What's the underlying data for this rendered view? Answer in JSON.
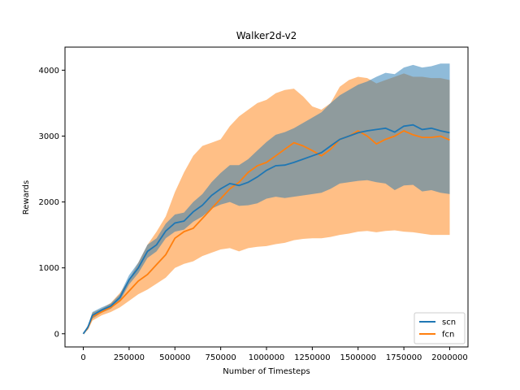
{
  "chart_data": {
    "type": "line",
    "title": "Walker2d-v2",
    "xlabel": "Number of Timesteps",
    "ylabel": "Rewards",
    "xlim": [
      -100000,
      2100000
    ],
    "ylim": [
      -200,
      4350
    ],
    "xticks": [
      0,
      250000,
      500000,
      750000,
      1000000,
      1250000,
      1500000,
      1750000,
      2000000
    ],
    "xtick_labels": [
      "0",
      "250000",
      "500000",
      "750000",
      "1000000",
      "1250000",
      "1500000",
      "1750000",
      "2000000"
    ],
    "yticks": [
      0,
      1000,
      2000,
      3000,
      4000
    ],
    "ytick_labels": [
      "0",
      "1000",
      "2000",
      "3000",
      "4000"
    ],
    "grid": false,
    "legend": {
      "placement": "bottom-right"
    },
    "x": [
      0,
      25000,
      50000,
      100000,
      150000,
      200000,
      250000,
      300000,
      350000,
      400000,
      450000,
      500000,
      550000,
      600000,
      650000,
      700000,
      750000,
      800000,
      850000,
      900000,
      950000,
      1000000,
      1050000,
      1100000,
      1150000,
      1200000,
      1250000,
      1300000,
      1350000,
      1400000,
      1450000,
      1500000,
      1550000,
      1600000,
      1650000,
      1700000,
      1750000,
      1800000,
      1850000,
      1900000,
      1950000,
      2000000
    ],
    "series": [
      {
        "name": "scn",
        "color": "#1f77b4",
        "band_color": "#1f77b4",
        "values": [
          0,
          100,
          280,
          360,
          420,
          550,
          820,
          1000,
          1250,
          1350,
          1560,
          1680,
          1710,
          1850,
          1950,
          2100,
          2200,
          2280,
          2250,
          2300,
          2380,
          2480,
          2550,
          2560,
          2600,
          2650,
          2700,
          2750,
          2850,
          2950,
          3000,
          3050,
          3080,
          3100,
          3120,
          3060,
          3150,
          3170,
          3100,
          3120,
          3080,
          3050
        ],
        "lower": [
          0,
          70,
          230,
          320,
          380,
          500,
          750,
          920,
          1150,
          1250,
          1450,
          1550,
          1580,
          1700,
          1780,
          1900,
          1960,
          2000,
          1940,
          1950,
          1980,
          2050,
          2080,
          2060,
          2080,
          2100,
          2120,
          2140,
          2200,
          2280,
          2300,
          2320,
          2330,
          2300,
          2280,
          2180,
          2250,
          2260,
          2160,
          2180,
          2140,
          2120
        ],
        "upper": [
          0,
          130,
          330,
          400,
          460,
          600,
          890,
          1080,
          1350,
          1450,
          1670,
          1810,
          1840,
          2000,
          2120,
          2300,
          2440,
          2560,
          2560,
          2650,
          2780,
          2910,
          3020,
          3060,
          3120,
          3200,
          3280,
          3360,
          3500,
          3620,
          3700,
          3780,
          3830,
          3900,
          3960,
          3940,
          4040,
          4080,
          4040,
          4060,
          4100,
          4100
        ]
      },
      {
        "name": "fcn",
        "color": "#ff7f0e",
        "band_color": "#ff7f0e",
        "values": [
          0,
          90,
          260,
          330,
          400,
          500,
          650,
          800,
          900,
          1050,
          1200,
          1450,
          1550,
          1600,
          1750,
          1900,
          2050,
          2200,
          2300,
          2450,
          2550,
          2600,
          2700,
          2800,
          2900,
          2850,
          2780,
          2700,
          2800,
          2950,
          3000,
          3080,
          3000,
          2880,
          2950,
          3000,
          3080,
          3020,
          2980,
          2980,
          3000,
          2940
        ],
        "lower": [
          0,
          60,
          200,
          280,
          330,
          400,
          500,
          600,
          670,
          760,
          850,
          1000,
          1060,
          1100,
          1180,
          1230,
          1280,
          1300,
          1250,
          1300,
          1320,
          1330,
          1360,
          1380,
          1420,
          1440,
          1450,
          1450,
          1470,
          1500,
          1520,
          1550,
          1560,
          1540,
          1560,
          1570,
          1550,
          1540,
          1520,
          1500,
          1500,
          1500
        ],
        "upper": [
          0,
          120,
          320,
          380,
          470,
          620,
          820,
          1080,
          1350,
          1550,
          1780,
          2150,
          2450,
          2700,
          2850,
          2900,
          2950,
          3150,
          3300,
          3400,
          3500,
          3550,
          3650,
          3700,
          3720,
          3600,
          3450,
          3400,
          3500,
          3750,
          3850,
          3900,
          3880,
          3800,
          3850,
          3900,
          3950,
          3900,
          3900,
          3880,
          3880,
          3850
        ]
      }
    ]
  }
}
